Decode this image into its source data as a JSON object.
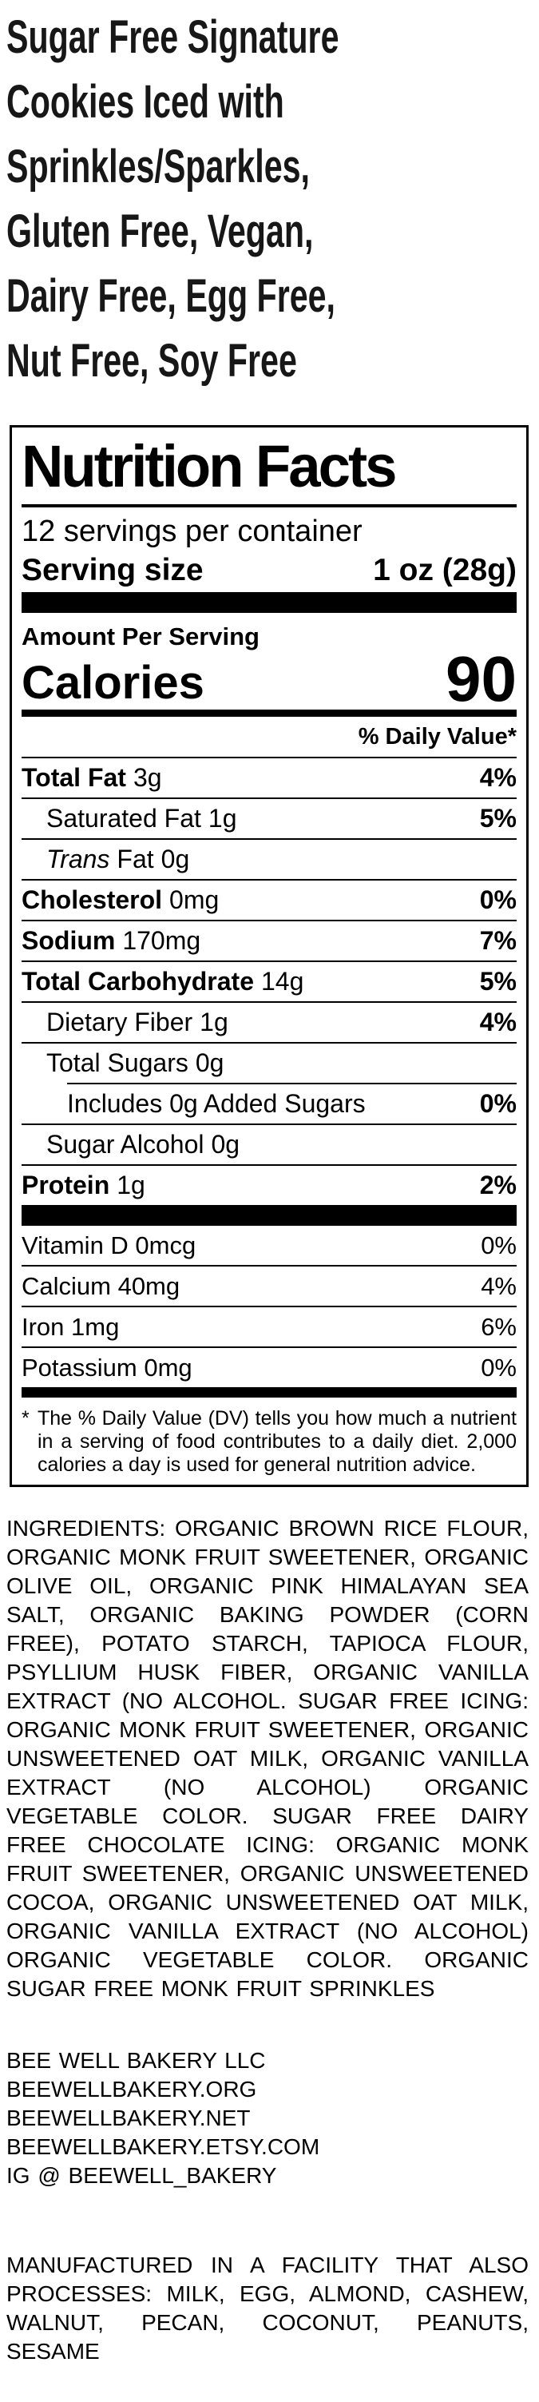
{
  "colors": {
    "background": "#ffffff",
    "text": "#000000",
    "title_text": "#171717"
  },
  "product_title": {
    "full": "Sugar Free Signature Cookies Iced with Sprinkles/Sparkles, Gluten Free, Vegan, Dairy Free, Egg Free, Nut Free, Soy Free",
    "lines": [
      "Sugar Free Signature",
      "Cookies Iced with",
      "Sprinkles/Sparkles,",
      "Gluten Free, Vegan,",
      "Dairy Free, Egg Free,",
      "Nut Free, Soy Free"
    ]
  },
  "nutrition": {
    "title": "Nutrition Facts",
    "servings_per_container": "12 servings per container",
    "serving_size_label": "Serving size",
    "serving_size_value": "1 oz (28g)",
    "amount_per_serving": "Amount Per Serving",
    "calories_label": "Calories",
    "calories_value": "90",
    "daily_value_header": "% Daily Value*",
    "rows": {
      "total_fat": {
        "name": "Total Fat",
        "amount": "3g",
        "dv": "4%"
      },
      "saturated_fat": {
        "name": "Saturated Fat",
        "amount": "1g",
        "dv": "5%"
      },
      "trans_fat": {
        "name_italic": "Trans",
        "name": "Fat",
        "amount": "0g",
        "dv": ""
      },
      "cholesterol": {
        "name": "Cholesterol",
        "amount": "0mg",
        "dv": "0%"
      },
      "sodium": {
        "name": "Sodium",
        "amount": "170mg",
        "dv": "7%"
      },
      "total_carb": {
        "name": "Total Carbohydrate",
        "amount": "14g",
        "dv": "5%"
      },
      "dietary_fiber": {
        "name": "Dietary Fiber",
        "amount": "1g",
        "dv": "4%"
      },
      "total_sugars": {
        "name": "Total Sugars",
        "amount": "0g",
        "dv": ""
      },
      "added_sugars": {
        "name": "Includes 0g Added Sugars",
        "amount": "",
        "dv": "0%"
      },
      "sugar_alcohol": {
        "name": "Sugar Alcohol",
        "amount": "0g",
        "dv": ""
      },
      "protein": {
        "name": "Protein",
        "amount": "1g",
        "dv": "2%"
      }
    },
    "micros": {
      "vitamin_d": {
        "name": "Vitamin D 0mcg",
        "dv": "0%"
      },
      "calcium": {
        "name": "Calcium 40mg",
        "dv": "4%"
      },
      "iron": {
        "name": "Iron 1mg",
        "dv": "6%"
      },
      "potassium": {
        "name": "Potassium 0mg",
        "dv": "0%"
      }
    },
    "footnote_mark": "*",
    "footnote_text": "The % Daily Value (DV) tells you how much a nutrient in a serving of food contributes to a daily diet. 2,000 calories a day is used for general nutrition advice."
  },
  "ingredients_text": "INGREDIENTS: ORGANIC BROWN RICE FLOUR, ORGANIC MONK FRUIT SWEETENER, ORGANIC OLIVE OIL, ORGANIC PINK HIMALAYAN SEA SALT, ORGANIC BAKING POWDER (CORN FREE), POTATO STARCH, TAPIOCA FLOUR, PSYLLIUM HUSK FIBER, ORGANIC VANILLA EXTRACT (NO ALCOHOL. SUGAR FREE ICING: ORGANIC MONK FRUIT SWEETENER, ORGANIC UNSWEETENED OAT MILK, ORGANIC VANILLA EXTRACT (NO ALCOHOL) ORGANIC VEGETABLE COLOR. SUGAR FREE DAIRY FREE CHOCOLATE ICING: ORGANIC MONK FRUIT SWEETENER, ORGANIC UNSWEETENED COCOA, ORGANIC UNSWEETENED OAT MILK, ORGANIC VANILLA EXTRACT (NO ALCOHOL) ORGANIC VEGETABLE COLOR. ORGANIC SUGAR FREE MONK FRUIT SPRINKLES",
  "bakery_info": {
    "company": "BEE WELL BAKERY LLC",
    "website_org": "BEEWELLBAKERY.ORG",
    "website_net": "BEEWELLBAKERY.NET",
    "website_etsy": "BEEWELLBAKERY.ETSY.COM",
    "instagram": "IG @ BEEWELL_BAKERY"
  },
  "allergen_text": "MANUFACTURED IN A FACILITY THAT ALSO PROCESSES: MILK, EGG, ALMOND, CASHEW, WALNUT, PECAN, COCONUT, PEANUTS, SESAME"
}
